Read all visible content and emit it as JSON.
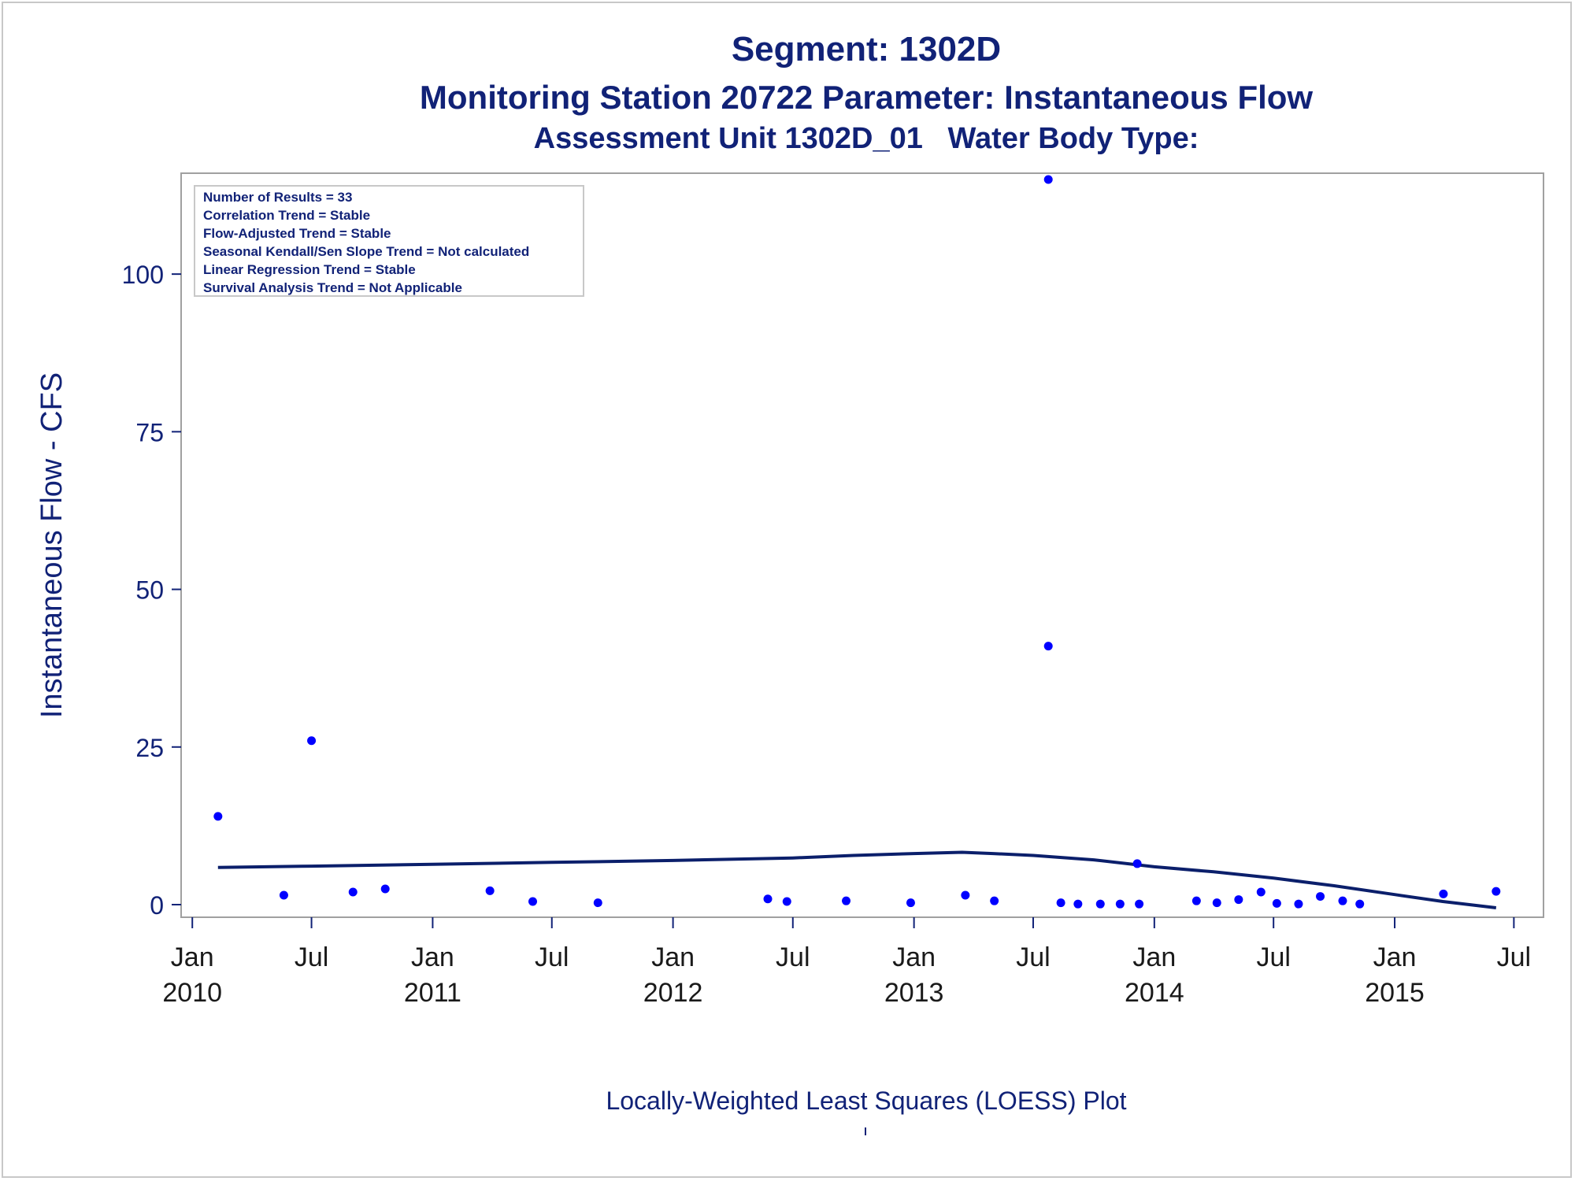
{
  "titles": {
    "line1": "Segment: 1302D",
    "line2": "Monitoring Station 20722 Parameter: Instantaneous Flow",
    "line3": "Assessment Unit 1302D_01   Water Body Type:"
  },
  "footnote": "Locally-Weighted Least Squares (LOESS) Plot",
  "colors": {
    "text": "#112277",
    "points": "#0000ff",
    "loess": "#0b1f6b",
    "axis": "#a0a0a0"
  },
  "chart_data": {
    "type": "scatter",
    "xlabel": "",
    "ylabel": "Instantaneous Flow - CFS",
    "ylim": [
      -2,
      116
    ],
    "xlim": [
      "2009-12-15",
      "2015-08-15"
    ],
    "y_ticks": [
      0,
      25,
      50,
      75,
      100
    ],
    "x_ticks": [
      {
        "date": "2010-01-01",
        "line1": "Jan",
        "line2": "2010"
      },
      {
        "date": "2010-07-01",
        "line1": "Jul",
        "line2": ""
      },
      {
        "date": "2011-01-01",
        "line1": "Jan",
        "line2": "2011"
      },
      {
        "date": "2011-07-01",
        "line1": "Jul",
        "line2": ""
      },
      {
        "date": "2012-01-01",
        "line1": "Jan",
        "line2": "2012"
      },
      {
        "date": "2012-07-01",
        "line1": "Jul",
        "line2": ""
      },
      {
        "date": "2013-01-01",
        "line1": "Jan",
        "line2": "2013"
      },
      {
        "date": "2013-07-01",
        "line1": "Jul",
        "line2": ""
      },
      {
        "date": "2014-01-01",
        "line1": "Jan",
        "line2": "2014"
      },
      {
        "date": "2014-07-01",
        "line1": "Jul",
        "line2": ""
      },
      {
        "date": "2015-01-01",
        "line1": "Jan",
        "line2": "2015"
      },
      {
        "date": "2015-07-01",
        "line1": "Jul",
        "line2": ""
      }
    ],
    "legend_placement": "top-left",
    "stats": [
      "Number of Results = 33",
      "Correlation Trend = Stable",
      "Flow-Adjusted Trend = Stable",
      "Seasonal Kendall/Sen Slope Trend = Not calculated",
      "Linear Regression Trend = Stable",
      "Survival Analysis Trend = Not Applicable"
    ],
    "series": [
      {
        "kind": "scatter",
        "points": [
          {
            "x": "2010-02-09",
            "y": 14
          },
          {
            "x": "2010-05-20",
            "y": 1.5
          },
          {
            "x": "2010-07-01",
            "y": 26
          },
          {
            "x": "2010-09-02",
            "y": 2
          },
          {
            "x": "2010-10-21",
            "y": 2.5
          },
          {
            "x": "2011-03-29",
            "y": 2.2
          },
          {
            "x": "2011-06-02",
            "y": 0.5
          },
          {
            "x": "2011-09-09",
            "y": 0.3
          },
          {
            "x": "2012-05-24",
            "y": 0.9
          },
          {
            "x": "2012-06-22",
            "y": 0.5
          },
          {
            "x": "2012-09-20",
            "y": 0.6
          },
          {
            "x": "2012-12-27",
            "y": 0.3
          },
          {
            "x": "2013-03-20",
            "y": 1.5
          },
          {
            "x": "2013-05-03",
            "y": 0.6
          },
          {
            "x": "2013-07-24",
            "y": 115
          },
          {
            "x": "2013-07-24",
            "y": 41
          },
          {
            "x": "2013-08-12",
            "y": 0.3
          },
          {
            "x": "2013-09-07",
            "y": 0.1
          },
          {
            "x": "2013-10-11",
            "y": 0.1
          },
          {
            "x": "2013-11-10",
            "y": 0.1
          },
          {
            "x": "2013-12-09",
            "y": 0.1
          },
          {
            "x": "2013-12-06",
            "y": 6.5
          },
          {
            "x": "2014-03-06",
            "y": 0.6
          },
          {
            "x": "2014-04-06",
            "y": 0.3
          },
          {
            "x": "2014-05-09",
            "y": 0.8
          },
          {
            "x": "2014-06-12",
            "y": 2
          },
          {
            "x": "2014-07-06",
            "y": 0.2
          },
          {
            "x": "2014-08-08",
            "y": 0.1
          },
          {
            "x": "2014-09-10",
            "y": 1.3
          },
          {
            "x": "2014-10-14",
            "y": 0.6
          },
          {
            "x": "2014-11-09",
            "y": 0.1
          },
          {
            "x": "2015-03-16",
            "y": 1.7
          },
          {
            "x": "2015-06-04",
            "y": 2.1
          }
        ]
      },
      {
        "kind": "loess",
        "points": [
          {
            "x": "2010-02-09",
            "y": 5.9
          },
          {
            "x": "2010-07-01",
            "y": 6.1
          },
          {
            "x": "2011-01-01",
            "y": 6.4
          },
          {
            "x": "2011-07-01",
            "y": 6.7
          },
          {
            "x": "2012-01-01",
            "y": 7.0
          },
          {
            "x": "2012-07-01",
            "y": 7.4
          },
          {
            "x": "2012-10-01",
            "y": 7.8
          },
          {
            "x": "2013-01-01",
            "y": 8.1
          },
          {
            "x": "2013-03-15",
            "y": 8.3
          },
          {
            "x": "2013-05-01",
            "y": 8.1
          },
          {
            "x": "2013-07-01",
            "y": 7.8
          },
          {
            "x": "2013-10-01",
            "y": 7.1
          },
          {
            "x": "2014-01-01",
            "y": 6.0
          },
          {
            "x": "2014-04-01",
            "y": 5.2
          },
          {
            "x": "2014-07-01",
            "y": 4.2
          },
          {
            "x": "2014-10-01",
            "y": 3.0
          },
          {
            "x": "2015-01-01",
            "y": 1.6
          },
          {
            "x": "2015-03-15",
            "y": 0.5
          },
          {
            "x": "2015-06-04",
            "y": -0.5
          }
        ]
      }
    ]
  }
}
